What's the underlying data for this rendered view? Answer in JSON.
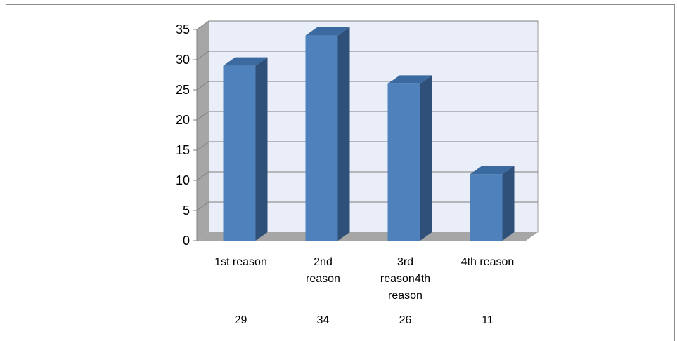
{
  "chart_data": {
    "type": "bar",
    "categories": [
      "1st reason",
      "2nd reason",
      "3rd reason4th reason",
      "4th reason"
    ],
    "category_lines": [
      [
        "1st reason"
      ],
      [
        "2nd",
        "reason"
      ],
      [
        "3rd",
        "reason4th",
        "reason"
      ],
      [
        "4th reason"
      ]
    ],
    "values": [
      29,
      34,
      26,
      11
    ],
    "value_labels": [
      "29",
      "34",
      "26",
      "11"
    ],
    "ylim": [
      0,
      35
    ],
    "yticks": [
      0,
      5,
      10,
      15,
      20,
      25,
      30,
      35
    ],
    "grid": true,
    "style": "3d-column",
    "colors": {
      "bar_front": "#4f81bd",
      "bar_side": "#2f5078",
      "bar_top": "#3a6aa0",
      "back_wall": "#eaeef8",
      "side_wall": "#a6a6a6",
      "floor": "#a6a6a6",
      "grid": "#7f7f7f"
    }
  }
}
